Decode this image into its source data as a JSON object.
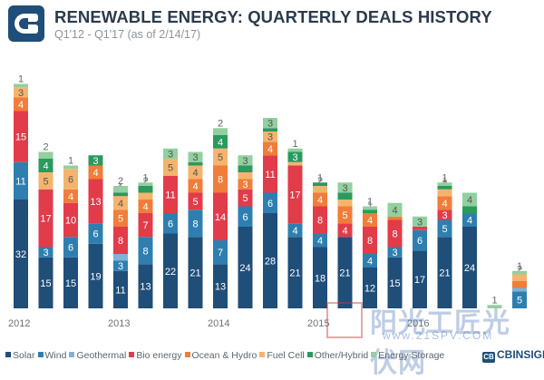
{
  "header": {
    "title": "RENEWABLE ENERGY: QUARTERLY DEALS HISTORY",
    "subtitle": "Q1'12 - Q1'17 (as of 2/14/17)"
  },
  "brand": {
    "mark": "CB",
    "name": "CBINSIGHTS"
  },
  "watermark": {
    "text": "阳光工匠光伏网",
    "url": "www.21SPV.COM",
    "seal": "工陽匠光"
  },
  "colors": {
    "Solar": "#1f4e79",
    "Wind": "#2e7fb0",
    "Geothermal": "#7fb2d4",
    "Bio energy": "#e23b4a",
    "Ocean & Hydro": "#f07d39",
    "Fuel Cell": "#f5b46e",
    "Other/Hybrid": "#2a9a5e",
    "Energy Storage": "#93cf9f"
  },
  "legend": [
    "Solar",
    "Wind",
    "Geothermal",
    "Bio energy",
    "Ocean & Hydro",
    "Fuel Cell",
    "Other/Hybrid",
    "Energy Storage"
  ],
  "chart_data": {
    "type": "bar",
    "stacked": true,
    "categories": [
      "Q1'12",
      "Q2'12",
      "Q3'12",
      "Q4'12",
      "Q1'13",
      "Q2'13",
      "Q3'13",
      "Q4'13",
      "Q1'14",
      "Q2'14",
      "Q3'14",
      "Q4'14",
      "Q1'15",
      "Q2'15",
      "Q3'15",
      "Q4'15",
      "Q1'16",
      "Q2'16",
      "Q3'16",
      "Q4'16",
      "Q1'17"
    ],
    "x_tick_labels": [
      {
        "label": "2012",
        "index": 0
      },
      {
        "label": "2013",
        "index": 4
      },
      {
        "label": "2014",
        "index": 8
      },
      {
        "label": "2015",
        "index": 12
      },
      {
        "label": "2016",
        "index": 16
      }
    ],
    "series": [
      {
        "name": "Solar",
        "values": [
          32,
          15,
          15,
          19,
          11,
          13,
          22,
          21,
          13,
          24,
          28,
          21,
          18,
          21,
          12,
          15,
          17,
          21,
          24,
          0,
          0
        ]
      },
      {
        "name": "Wind",
        "values": [
          11,
          3,
          6,
          6,
          3,
          8,
          6,
          8,
          7,
          6,
          6,
          4,
          4,
          0,
          4,
          3,
          6,
          5,
          4,
          0,
          5
        ]
      },
      {
        "name": "Geothermal",
        "values": [
          0,
          0,
          0,
          0,
          2,
          0,
          0,
          0,
          0,
          0,
          0,
          0,
          0,
          0,
          0,
          0,
          0,
          0,
          0,
          0,
          1
        ]
      },
      {
        "name": "Bio energy",
        "values": [
          15,
          17,
          10,
          13,
          8,
          7,
          11,
          5,
          14,
          5,
          11,
          17,
          8,
          4,
          8,
          8,
          1,
          3,
          0,
          0,
          0
        ]
      },
      {
        "name": "Ocean & Hydro",
        "values": [
          4,
          0,
          4,
          4,
          5,
          4,
          0,
          4,
          8,
          3,
          4,
          0,
          4,
          5,
          4,
          1,
          0,
          4,
          0,
          0,
          2
        ]
      },
      {
        "name": "Fuel Cell",
        "values": [
          3,
          5,
          6,
          0,
          4,
          2,
          5,
          4,
          5,
          2,
          3,
          1,
          2,
          2,
          0,
          0,
          0,
          2,
          0,
          0,
          2
        ]
      },
      {
        "name": "Other/Hybrid",
        "values": [
          0,
          4,
          0,
          3,
          1,
          2,
          0,
          1,
          4,
          2,
          1,
          3,
          1,
          2,
          1,
          0,
          0,
          1,
          2,
          0,
          0
        ]
      },
      {
        "name": "Energy Storage",
        "values": [
          1,
          2,
          1,
          0,
          2,
          1,
          3,
          3,
          2,
          3,
          3,
          1,
          0,
          3,
          1,
          4,
          3,
          1,
          4,
          1,
          1
        ]
      }
    ],
    "ylim": [
      0,
      75
    ],
    "xlabel": "",
    "ylabel": "",
    "grid": false,
    "legend_position": "bottom"
  }
}
